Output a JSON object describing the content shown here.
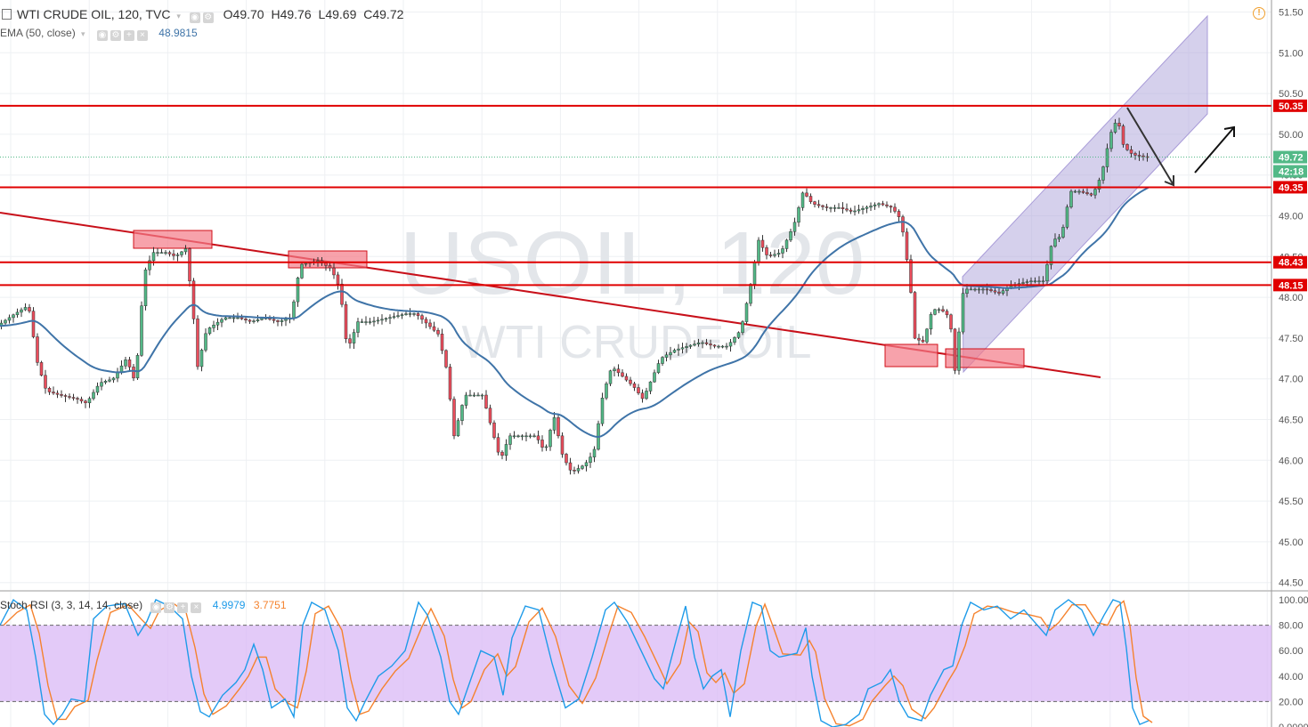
{
  "header": {
    "symbol_line": "WTI CRUDE OIL, 120, TVC",
    "ohlc": {
      "o": "O49.70",
      "h": "H49.76",
      "l": "L49.69",
      "c": "C49.72"
    },
    "ema_label": "EMA (50, close)",
    "ema_value": "48.9815",
    "stoch_label": "Stoch RSI (3, 3, 14, 14, close)",
    "stoch_k": "4.9979",
    "stoch_d": "3.7751"
  },
  "watermark": {
    "symbol": "USOIL, 120",
    "name": "WTI CRUDE OIL"
  },
  "price_tags": {
    "current": "49.72",
    "countdown": "42:18",
    "levels": [
      {
        "label": "50.35",
        "value": 50.35
      },
      {
        "label": "49.35",
        "value": 49.35
      },
      {
        "label": "48.43",
        "value": 48.43
      },
      {
        "label": "48.15",
        "value": 48.15
      }
    ]
  },
  "colors": {
    "up": "#53b987",
    "down": "#eb4d5c",
    "level": "#e00000",
    "ema": "#3f74a8",
    "channel": "#b3a9dc",
    "stoch_k": "#1e9be9",
    "stoch_d": "#f5822d",
    "stoch_band": "#d9b8f5"
  },
  "chart_data": [
    {
      "type": "candlestick",
      "title": "WTI CRUDE OIL, 120, TVC",
      "ylim": [
        44.4,
        51.6
      ],
      "y_ticks": [
        "51.50",
        "51.00",
        "50.50",
        "50.00",
        "49.50",
        "49.00",
        "48.50",
        "48.00",
        "47.50",
        "47.00",
        "46.50",
        "46.00",
        "45.50",
        "45.00",
        "44.50"
      ],
      "horizontal_levels": [
        50.35,
        49.35,
        48.43,
        48.15
      ],
      "ema_50_last": 48.9815,
      "price_path": [
        [
          0,
          47.65
        ],
        [
          20,
          47.8
        ],
        [
          35,
          47.9
        ],
        [
          45,
          47.2
        ],
        [
          55,
          46.85
        ],
        [
          70,
          46.8
        ],
        [
          90,
          46.75
        ],
        [
          100,
          46.7
        ],
        [
          115,
          46.95
        ],
        [
          130,
          47.0
        ],
        [
          145,
          47.25
        ],
        [
          155,
          46.95
        ],
        [
          165,
          48.3
        ],
        [
          175,
          48.55
        ],
        [
          190,
          48.55
        ],
        [
          200,
          48.5
        ],
        [
          212,
          48.6
        ],
        [
          220,
          47.8
        ],
        [
          225,
          47.15
        ],
        [
          235,
          47.6
        ],
        [
          255,
          47.75
        ],
        [
          270,
          47.75
        ],
        [
          285,
          47.7
        ],
        [
          300,
          47.75
        ],
        [
          315,
          47.7
        ],
        [
          330,
          47.75
        ],
        [
          340,
          48.4
        ],
        [
          360,
          48.45
        ],
        [
          375,
          48.35
        ],
        [
          385,
          48.1
        ],
        [
          393,
          47.35
        ],
        [
          405,
          47.7
        ],
        [
          420,
          47.7
        ],
        [
          440,
          47.75
        ],
        [
          460,
          47.8
        ],
        [
          470,
          47.8
        ],
        [
          480,
          47.7
        ],
        [
          495,
          47.55
        ],
        [
          505,
          47.1
        ],
        [
          513,
          46.3
        ],
        [
          525,
          46.8
        ],
        [
          545,
          46.8
        ],
        [
          555,
          46.4
        ],
        [
          565,
          46.0
        ],
        [
          575,
          46.3
        ],
        [
          590,
          46.3
        ],
        [
          605,
          46.3
        ],
        [
          615,
          46.1
        ],
        [
          625,
          46.55
        ],
        [
          635,
          46.05
        ],
        [
          645,
          45.85
        ],
        [
          660,
          45.95
        ],
        [
          670,
          46.1
        ],
        [
          680,
          46.8
        ],
        [
          690,
          47.15
        ],
        [
          700,
          47.05
        ],
        [
          715,
          46.9
        ],
        [
          725,
          46.75
        ],
        [
          735,
          47.0
        ],
        [
          745,
          47.25
        ],
        [
          760,
          47.35
        ],
        [
          775,
          47.4
        ],
        [
          790,
          47.45
        ],
        [
          805,
          47.4
        ],
        [
          820,
          47.4
        ],
        [
          835,
          47.6
        ],
        [
          845,
          48.1
        ],
        [
          855,
          48.7
        ],
        [
          865,
          48.5
        ],
        [
          880,
          48.55
        ],
        [
          895,
          48.9
        ],
        [
          905,
          49.3
        ],
        [
          915,
          49.15
        ],
        [
          930,
          49.1
        ],
        [
          945,
          49.1
        ],
        [
          960,
          49.05
        ],
        [
          975,
          49.1
        ],
        [
          990,
          49.15
        ],
        [
          1005,
          49.1
        ],
        [
          1015,
          48.95
        ],
        [
          1025,
          48.2
        ],
        [
          1030,
          47.5
        ],
        [
          1040,
          47.45
        ],
        [
          1050,
          47.85
        ],
        [
          1060,
          47.85
        ],
        [
          1070,
          47.75
        ],
        [
          1075,
          47.05
        ],
        [
          1085,
          48.1
        ],
        [
          1095,
          48.1
        ],
        [
          1110,
          48.1
        ],
        [
          1125,
          48.05
        ],
        [
          1140,
          48.15
        ],
        [
          1160,
          48.2
        ],
        [
          1175,
          48.2
        ],
        [
          1185,
          48.7
        ],
        [
          1195,
          48.75
        ],
        [
          1205,
          49.3
        ],
        [
          1215,
          49.3
        ],
        [
          1230,
          49.25
        ],
        [
          1240,
          49.5
        ],
        [
          1250,
          50.0
        ],
        [
          1258,
          50.2
        ],
        [
          1265,
          49.85
        ],
        [
          1275,
          49.75
        ],
        [
          1290,
          49.72
        ]
      ]
    },
    {
      "type": "line",
      "title": "Stoch RSI (3, 3, 14, 14, close)",
      "ylim": [
        0,
        100
      ],
      "y_ticks": [
        "100.00",
        "80.00",
        "60.00",
        "40.00",
        "20.00",
        "0.0000"
      ],
      "band": [
        20,
        80
      ],
      "series": [
        {
          "name": "K",
          "last": 4.9979
        },
        {
          "name": "D",
          "last": 3.7751
        }
      ],
      "k_path": [
        [
          0,
          80
        ],
        [
          15,
          100
        ],
        [
          30,
          92
        ],
        [
          40,
          55
        ],
        [
          50,
          10
        ],
        [
          60,
          2
        ],
        [
          70,
          10
        ],
        [
          80,
          22
        ],
        [
          95,
          20
        ],
        [
          105,
          85
        ],
        [
          120,
          95
        ],
        [
          140,
          97
        ],
        [
          155,
          72
        ],
        [
          165,
          83
        ],
        [
          175,
          100
        ],
        [
          190,
          95
        ],
        [
          205,
          85
        ],
        [
          215,
          40
        ],
        [
          225,
          12
        ],
        [
          235,
          8
        ],
        [
          250,
          25
        ],
        [
          265,
          35
        ],
        [
          275,
          45
        ],
        [
          285,
          65
        ],
        [
          295,
          45
        ],
        [
          305,
          15
        ],
        [
          320,
          22
        ],
        [
          330,
          8
        ],
        [
          340,
          80
        ],
        [
          350,
          98
        ],
        [
          365,
          92
        ],
        [
          380,
          60
        ],
        [
          390,
          15
        ],
        [
          400,
          5
        ],
        [
          410,
          20
        ],
        [
          425,
          40
        ],
        [
          440,
          48
        ],
        [
          455,
          60
        ],
        [
          470,
          98
        ],
        [
          480,
          88
        ],
        [
          495,
          55
        ],
        [
          505,
          20
        ],
        [
          515,
          10
        ],
        [
          525,
          30
        ],
        [
          540,
          60
        ],
        [
          555,
          55
        ],
        [
          565,
          25
        ],
        [
          575,
          70
        ],
        [
          590,
          95
        ],
        [
          605,
          92
        ],
        [
          620,
          50
        ],
        [
          635,
          15
        ],
        [
          650,
          22
        ],
        [
          665,
          55
        ],
        [
          680,
          92
        ],
        [
          690,
          98
        ],
        [
          705,
          82
        ],
        [
          720,
          60
        ],
        [
          735,
          38
        ],
        [
          745,
          30
        ],
        [
          760,
          70
        ],
        [
          770,
          95
        ],
        [
          780,
          55
        ],
        [
          790,
          30
        ],
        [
          800,
          40
        ],
        [
          810,
          45
        ],
        [
          820,
          8
        ],
        [
          832,
          60
        ],
        [
          845,
          98
        ],
        [
          855,
          95
        ],
        [
          865,
          60
        ],
        [
          875,
          55
        ],
        [
          895,
          58
        ],
        [
          905,
          78
        ],
        [
          912,
          40
        ],
        [
          922,
          5
        ],
        [
          935,
          0
        ],
        [
          950,
          2
        ],
        [
          965,
          10
        ],
        [
          975,
          30
        ],
        [
          990,
          35
        ],
        [
          1000,
          45
        ],
        [
          1010,
          20
        ],
        [
          1020,
          8
        ],
        [
          1035,
          5
        ],
        [
          1045,
          25
        ],
        [
          1060,
          45
        ],
        [
          1070,
          48
        ],
        [
          1080,
          80
        ],
        [
          1090,
          98
        ],
        [
          1105,
          92
        ],
        [
          1120,
          95
        ],
        [
          1135,
          85
        ],
        [
          1150,
          92
        ],
        [
          1165,
          80
        ],
        [
          1175,
          72
        ],
        [
          1185,
          92
        ],
        [
          1200,
          100
        ],
        [
          1215,
          92
        ],
        [
          1228,
          72
        ],
        [
          1240,
          88
        ],
        [
          1250,
          100
        ],
        [
          1258,
          98
        ],
        [
          1265,
          62
        ],
        [
          1272,
          15
        ],
        [
          1280,
          2
        ],
        [
          1290,
          5
        ]
      ]
    }
  ]
}
